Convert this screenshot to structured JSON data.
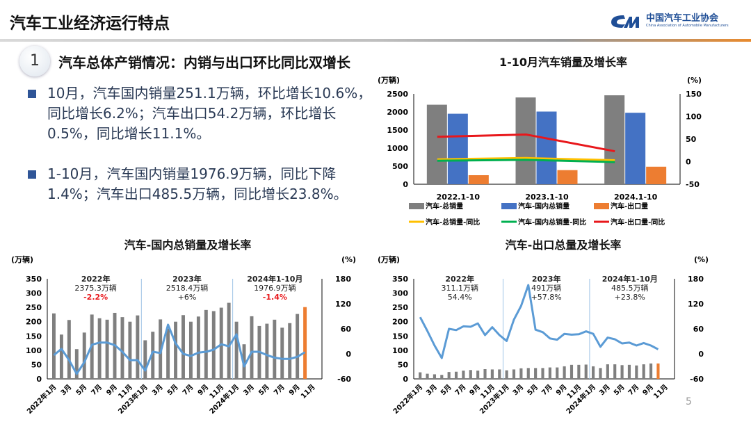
{
  "header": {
    "title": "汽车工业经济运行特点",
    "logo_cn": "中国汽车工业协会",
    "logo_en": "China Association of Automobile Manufacturers"
  },
  "section": {
    "number": "1",
    "heading": "汽车总体产销情况：内销与出口环比同比双增长"
  },
  "bullets": [
    "10月，汽车国内销量251.1万辆，环比增长10.6%，同比增长6.2%；汽车出口54.2万辆，环比增长0.5%，同比增长11.1%。",
    "1-10月，汽车国内销量1976.9万辆，同比下降1.4%；汽车出口485.5万辆，同比增长23.8%。"
  ],
  "page_number": "5",
  "chart_data": [
    {
      "type": "bar",
      "title": "1-10月汽车销量及增长率",
      "ylabel": "(万辆)",
      "y2label": "(%)",
      "ylim": [
        0,
        2500
      ],
      "y2lim": [
        -50,
        150
      ],
      "yticks": [
        "0",
        "500",
        "1000",
        "1500",
        "2000",
        "2500"
      ],
      "y2ticks": [
        "-50",
        "0",
        "50",
        "100",
        "150"
      ],
      "categories": [
        "2022.1-10",
        "2023.1-10",
        "2024.1-10"
      ],
      "series": [
        {
          "name": "汽车-总销量",
          "kind": "bar",
          "color": "#7f7f7f",
          "values": [
            2200,
            2400,
            2460
          ]
        },
        {
          "name": "汽车-国内总销量",
          "kind": "bar",
          "color": "#4472c4",
          "values": [
            1950,
            2010,
            1977
          ]
        },
        {
          "name": "汽车-出口量",
          "kind": "bar",
          "color": "#ed7d31",
          "values": [
            250,
            390,
            485
          ]
        },
        {
          "name": "汽车-总销量-同比",
          "kind": "line",
          "color": "#ffc000",
          "values": [
            5,
            8,
            3
          ]
        },
        {
          "name": "汽车-国内总销量-同比",
          "kind": "line",
          "color": "#00b050",
          "values": [
            2,
            4,
            -1
          ]
        },
        {
          "name": "汽车-出口量-同比",
          "kind": "line",
          "color": "#e8171b",
          "values": [
            55,
            60,
            23
          ]
        }
      ],
      "legend": "bottom"
    },
    {
      "type": "bar",
      "title": "汽车-国内总销量及增长率",
      "ylabel": "(万辆)",
      "y2label": "(%)",
      "ylim": [
        0,
        350
      ],
      "y2lim": [
        -60,
        180
      ],
      "yticks": [
        "0",
        "50",
        "100",
        "150",
        "200",
        "250",
        "300",
        "350"
      ],
      "y2ticks": [
        "-60",
        "0",
        "60",
        "120",
        "180"
      ],
      "x_tick_labels": [
        "2022年1月",
        "3月",
        "5月",
        "7月",
        "9月",
        "11月",
        "2023年1月",
        "3月",
        "5月",
        "7月",
        "9月",
        "11月",
        "2024年1月",
        "3月",
        "5月",
        "7月",
        "9月",
        "11月"
      ],
      "bars": [
        229,
        155,
        206,
        104,
        162,
        225,
        212,
        207,
        231,
        216,
        200,
        222,
        135,
        165,
        208,
        176,
        200,
        223,
        200,
        218,
        241,
        237,
        249,
        266,
        200,
        121,
        219,
        185,
        193,
        207,
        179,
        195,
        227,
        251
      ],
      "bar_color": "#7f7f7f",
      "highlight_color": "#ed7d31",
      "line": [
        -3,
        12,
        -15,
        -48,
        -20,
        22,
        27,
        27,
        21,
        5,
        -15,
        -15,
        -40,
        5,
        2,
        70,
        25,
        0,
        -5,
        3,
        5,
        10,
        23,
        18,
        47,
        -30,
        5,
        5,
        -3,
        -9,
        -12,
        -12,
        -7,
        4
      ],
      "line_color": "#5b9bd5",
      "annotations": [
        {
          "lines": [
            "2022年",
            "2375.3万辆",
            "-2.2%"
          ],
          "colors": [
            "#222",
            "#222",
            "#e8171b"
          ]
        },
        {
          "lines": [
            "2023年",
            "2518.4万辆",
            "+6%"
          ],
          "colors": [
            "#222",
            "#222",
            "#222"
          ]
        },
        {
          "lines": [
            "2024年1-10月",
            "1976.9万辆",
            "-1.4%"
          ],
          "colors": [
            "#222",
            "#222",
            "#e8171b"
          ]
        }
      ]
    },
    {
      "type": "bar",
      "title": "汽车-出口总量及增长率",
      "ylabel": "(万辆)",
      "y2label": "(%)",
      "ylim": [
        0,
        350
      ],
      "y2lim": [
        -60,
        180
      ],
      "yticks": [
        "0",
        "50",
        "100",
        "150",
        "200",
        "250",
        "300",
        "350"
      ],
      "y2ticks": [
        "-60",
        "0",
        "60",
        "120",
        "180"
      ],
      "x_tick_labels": [
        "2022年1月",
        "3月",
        "5月",
        "7月",
        "9月",
        "11月",
        "2023年1月",
        "3月",
        "5月",
        "7月",
        "9月",
        "11月",
        "2024年1月",
        "3月",
        "5月",
        "7月",
        "9月",
        "11月"
      ],
      "bars": [
        23,
        18,
        16,
        14,
        24,
        25,
        29,
        31,
        29,
        34,
        33,
        33,
        30,
        33,
        37,
        38,
        38,
        38,
        40,
        40,
        44,
        49,
        49,
        50,
        44,
        38,
        51,
        51,
        48,
        49,
        47,
        51,
        54,
        54
      ],
      "bar_color": "#7f7f7f",
      "highlight_color": "#ed7d31",
      "line": [
        88,
        55,
        20,
        -10,
        60,
        57,
        66,
        65,
        73,
        45,
        64,
        45,
        31,
        82,
        115,
        165,
        58,
        52,
        37,
        34,
        48,
        46,
        47,
        54,
        48,
        17,
        39,
        35,
        25,
        27,
        20,
        26,
        20,
        11
      ],
      "line_color": "#5b9bd5",
      "annotations": [
        {
          "lines": [
            "2022年",
            "311.1万辆",
            "54.4%"
          ],
          "colors": [
            "#222",
            "#222",
            "#222"
          ]
        },
        {
          "lines": [
            "2023年",
            "491万辆",
            "+57.8%"
          ],
          "colors": [
            "#222",
            "#222",
            "#222"
          ]
        },
        {
          "lines": [
            "2024年1-10月",
            "485.5万辆",
            "+23.8%"
          ],
          "colors": [
            "#222",
            "#222",
            "#222"
          ]
        }
      ]
    }
  ]
}
